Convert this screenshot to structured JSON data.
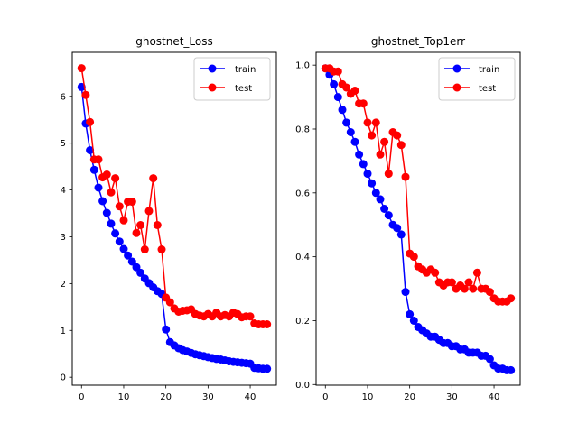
{
  "chart_data": [
    {
      "type": "line",
      "title": "ghostnet_Loss",
      "xlabel": "",
      "ylabel": "",
      "xlim": [
        -2.2,
        46.2
      ],
      "ylim": [
        -0.17,
        6.94
      ],
      "xticks": [
        0,
        10,
        20,
        30,
        40
      ],
      "yticks": [
        0,
        1,
        2,
        3,
        4,
        5,
        6
      ],
      "legend_position": "top-right",
      "grid": false,
      "series": [
        {
          "name": "train",
          "color": "#0000ff",
          "x": [
            0,
            1,
            2,
            3,
            4,
            5,
            6,
            7,
            8,
            9,
            10,
            11,
            12,
            13,
            14,
            15,
            16,
            17,
            18,
            19,
            20,
            21,
            22,
            23,
            24,
            25,
            26,
            27,
            28,
            29,
            30,
            31,
            32,
            33,
            34,
            35,
            36,
            37,
            38,
            39,
            40,
            41,
            42,
            43,
            44
          ],
          "values": [
            6.2,
            5.42,
            4.85,
            4.43,
            4.05,
            3.76,
            3.51,
            3.28,
            3.07,
            2.9,
            2.74,
            2.6,
            2.47,
            2.35,
            2.23,
            2.11,
            2.01,
            1.92,
            1.84,
            1.78,
            1.02,
            0.75,
            0.68,
            0.62,
            0.58,
            0.55,
            0.52,
            0.49,
            0.47,
            0.45,
            0.43,
            0.41,
            0.39,
            0.38,
            0.36,
            0.34,
            0.33,
            0.32,
            0.31,
            0.3,
            0.29,
            0.2,
            0.19,
            0.18,
            0.18
          ]
        },
        {
          "name": "test",
          "color": "#ff0000",
          "x": [
            0,
            1,
            2,
            3,
            4,
            5,
            6,
            7,
            8,
            9,
            10,
            11,
            12,
            13,
            14,
            15,
            16,
            17,
            18,
            19,
            20,
            21,
            22,
            23,
            24,
            25,
            26,
            27,
            28,
            29,
            30,
            31,
            32,
            33,
            34,
            35,
            36,
            37,
            38,
            39,
            40,
            41,
            42,
            43,
            44
          ],
          "values": [
            6.6,
            6.03,
            5.45,
            4.65,
            4.65,
            4.27,
            4.33,
            3.95,
            4.25,
            3.65,
            3.35,
            3.75,
            3.75,
            3.08,
            3.25,
            2.73,
            3.55,
            4.25,
            3.25,
            2.73,
            1.7,
            1.6,
            1.47,
            1.4,
            1.42,
            1.43,
            1.45,
            1.35,
            1.32,
            1.3,
            1.35,
            1.3,
            1.38,
            1.3,
            1.33,
            1.3,
            1.38,
            1.35,
            1.28,
            1.3,
            1.3,
            1.15,
            1.13,
            1.13,
            1.13
          ]
        }
      ]
    },
    {
      "type": "line",
      "title": "ghostnet_Top1err",
      "xlabel": "",
      "ylabel": "",
      "xlim": [
        -2.2,
        46.2
      ],
      "ylim": [
        -0.002,
        1.04
      ],
      "xticks": [
        0,
        10,
        20,
        30,
        40
      ],
      "yticks": [
        0.0,
        0.2,
        0.4,
        0.6,
        0.8,
        1.0
      ],
      "ytick_labels": [
        "0.0",
        "0.2",
        "0.4",
        "0.6",
        "0.8",
        "1.0"
      ],
      "legend_position": "top-right",
      "grid": false,
      "series": [
        {
          "name": "train",
          "color": "#0000ff",
          "x": [
            0,
            1,
            2,
            3,
            4,
            5,
            6,
            7,
            8,
            9,
            10,
            11,
            12,
            13,
            14,
            15,
            16,
            17,
            18,
            19,
            20,
            21,
            22,
            23,
            24,
            25,
            26,
            27,
            28,
            29,
            30,
            31,
            32,
            33,
            34,
            35,
            36,
            37,
            38,
            39,
            40,
            41,
            42,
            43,
            44
          ],
          "values": [
            0.99,
            0.97,
            0.94,
            0.9,
            0.86,
            0.82,
            0.79,
            0.76,
            0.72,
            0.69,
            0.66,
            0.63,
            0.6,
            0.58,
            0.55,
            0.53,
            0.5,
            0.49,
            0.47,
            0.29,
            0.22,
            0.2,
            0.18,
            0.17,
            0.16,
            0.15,
            0.15,
            0.14,
            0.13,
            0.13,
            0.12,
            0.12,
            0.11,
            0.11,
            0.1,
            0.1,
            0.1,
            0.09,
            0.09,
            0.08,
            0.06,
            0.05,
            0.05,
            0.045,
            0.045
          ]
        },
        {
          "name": "test",
          "color": "#ff0000",
          "x": [
            0,
            1,
            2,
            3,
            4,
            5,
            6,
            7,
            8,
            9,
            10,
            11,
            12,
            13,
            14,
            15,
            16,
            17,
            18,
            19,
            20,
            21,
            22,
            23,
            24,
            25,
            26,
            27,
            28,
            29,
            30,
            31,
            32,
            33,
            34,
            35,
            36,
            37,
            38,
            39,
            40,
            41,
            42,
            43,
            44
          ],
          "values": [
            0.99,
            0.99,
            0.98,
            0.98,
            0.94,
            0.93,
            0.91,
            0.92,
            0.88,
            0.88,
            0.82,
            0.78,
            0.82,
            0.72,
            0.76,
            0.66,
            0.79,
            0.78,
            0.75,
            0.65,
            0.41,
            0.4,
            0.37,
            0.36,
            0.35,
            0.36,
            0.35,
            0.32,
            0.31,
            0.32,
            0.32,
            0.3,
            0.31,
            0.3,
            0.32,
            0.3,
            0.35,
            0.3,
            0.3,
            0.29,
            0.27,
            0.26,
            0.26,
            0.26,
            0.27
          ]
        }
      ]
    }
  ]
}
